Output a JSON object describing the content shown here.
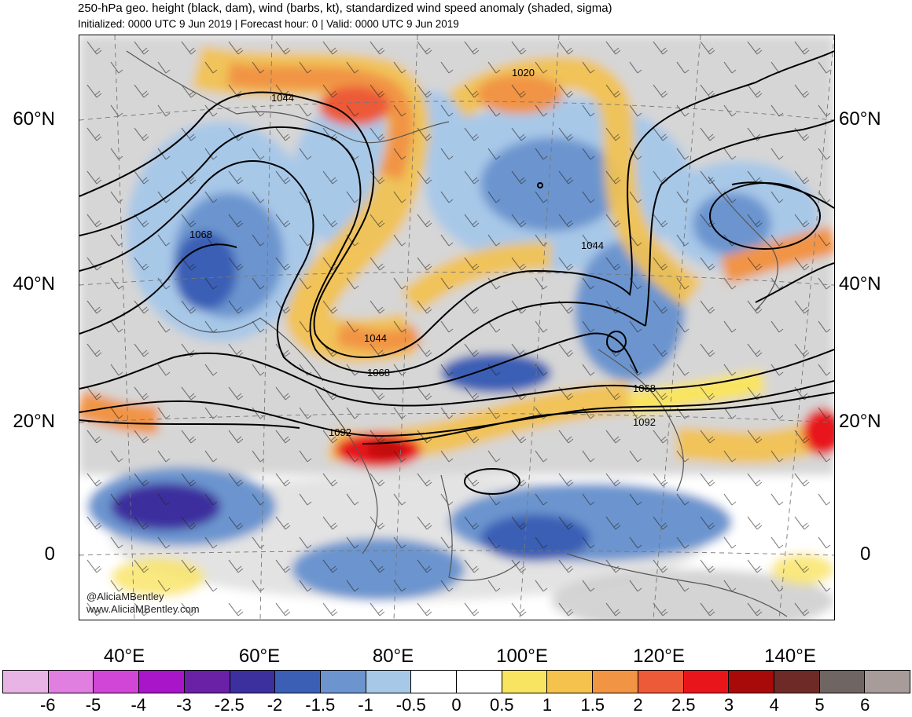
{
  "title": {
    "line1": "250-hPa geo. height (black, dam), wind (barbs, kt), standardized wind speed anomaly (shaded, sigma)",
    "line2": "Initialized: 0000 UTC 9 Jun 2019 | Forecast hour: 0 | Valid: 0000 UTC 9 Jun 2019"
  },
  "map": {
    "lat_labels": [
      "60°N",
      "40°N",
      "20°N",
      "0"
    ],
    "lon_labels": [
      "40°E",
      "60°E",
      "80°E",
      "100°E",
      "120°E",
      "140°E"
    ],
    "contour_labels": [
      "1044",
      "1020",
      "1068",
      "1044",
      "1044",
      "1068",
      "1068",
      "1092",
      "1092"
    ],
    "credit": {
      "handle": "@AliciaMBentley",
      "site": "www.AliciaMBentley.com"
    }
  },
  "colorbar": {
    "colors": [
      "#e8b4e6",
      "#e07fe0",
      "#d146d6",
      "#a915c8",
      "#6a21a6",
      "#3c2f9e",
      "#3a5fb5",
      "#6c95cf",
      "#a8c8e8",
      "#ffffff",
      "#ffffff",
      "#f9e461",
      "#f5c24d",
      "#f19444",
      "#ec5a37",
      "#e8161b",
      "#a80a0a",
      "#6e2a26",
      "#6f6562",
      "#a79c9a"
    ],
    "labels": [
      "-6",
      "-5",
      "-4",
      "-3",
      "-2.5",
      "-2",
      "-1.5",
      "-1",
      "-0.5",
      "0",
      "0.5",
      "1",
      "1.5",
      "2",
      "2.5",
      "3",
      "4",
      "5",
      "6"
    ]
  }
}
